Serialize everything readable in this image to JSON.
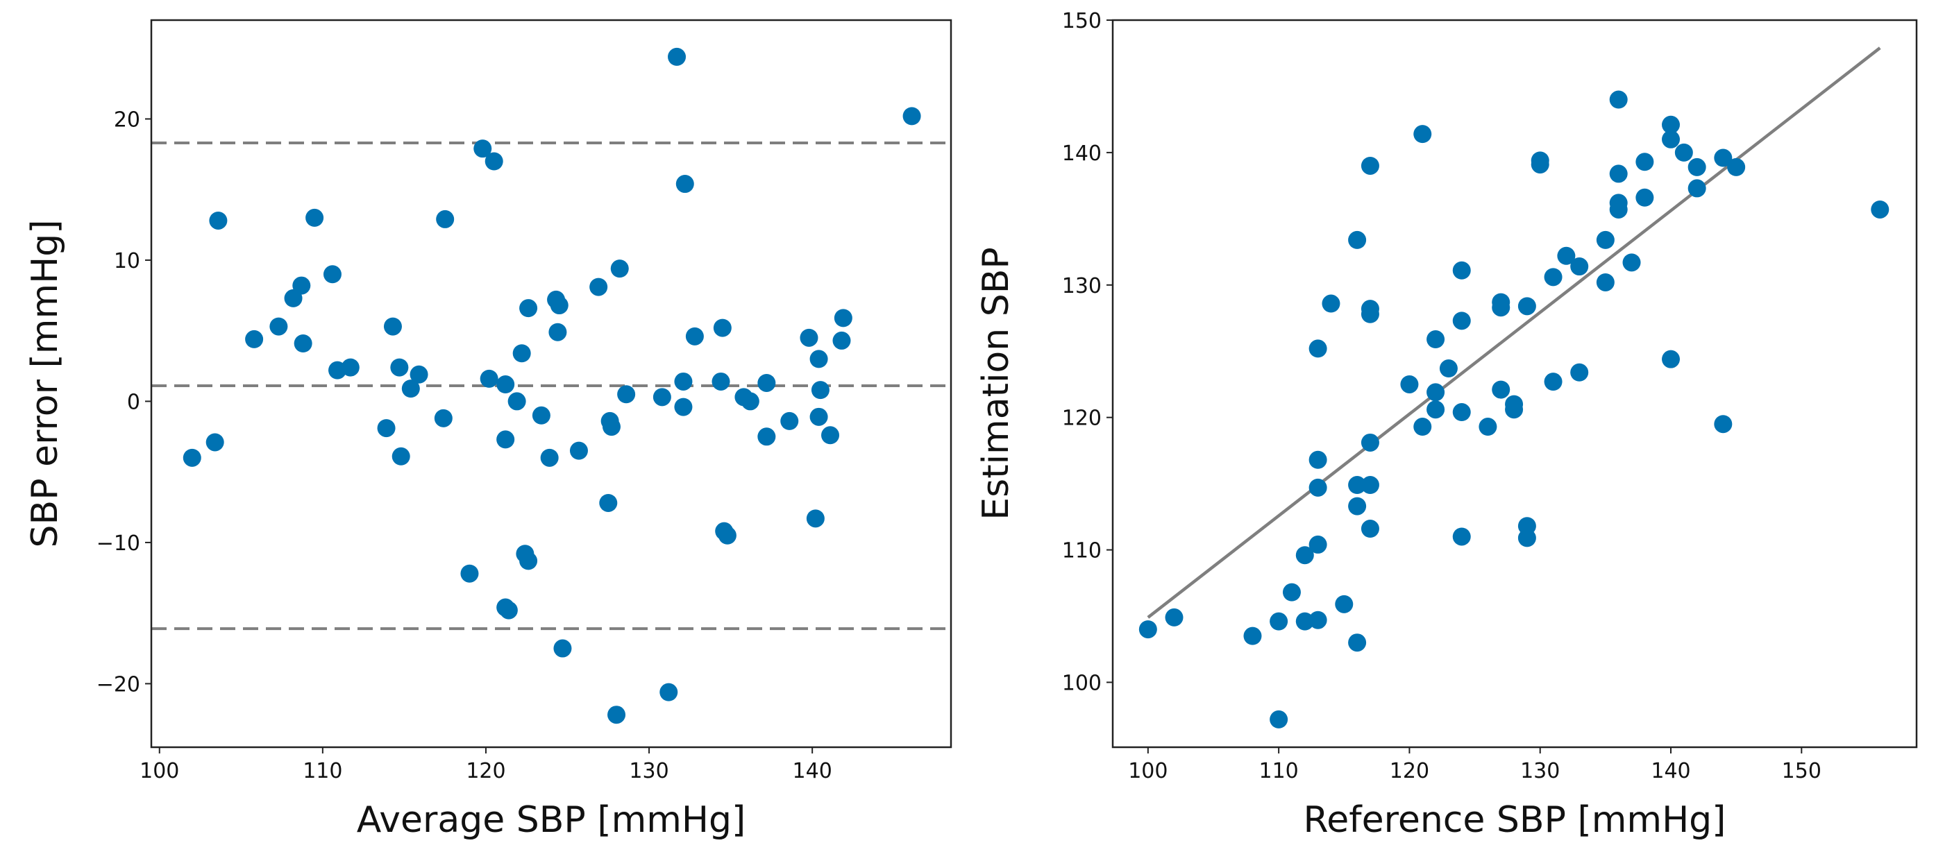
{
  "chart_data": [
    {
      "type": "scatter",
      "name": "bland-altman",
      "xlabel": "Average SBP [mmHg]",
      "ylabel": "SBP error [mmHg]",
      "xlim": [
        99.5,
        148.5
      ],
      "ylim": [
        -24.5,
        27
      ],
      "xticks": [
        100,
        110,
        120,
        130,
        140
      ],
      "yticks": [
        -20,
        -10,
        0,
        10,
        20
      ],
      "point_color": "#0072b2",
      "reference_lines": [
        {
          "label": "upper-limit",
          "y": 18.3,
          "style": "dashed",
          "color": "#7f7f7f"
        },
        {
          "label": "mean-bias",
          "y": 1.1,
          "style": "dashed",
          "color": "#7f7f7f"
        },
        {
          "label": "lower-limit",
          "y": -16.1,
          "style": "dashed",
          "color": "#7f7f7f"
        }
      ],
      "points": [
        [
          102.0,
          -4.0
        ],
        [
          103.4,
          -2.9
        ],
        [
          103.6,
          12.8
        ],
        [
          105.8,
          4.4
        ],
        [
          107.3,
          5.3
        ],
        [
          108.2,
          7.3
        ],
        [
          108.7,
          8.2
        ],
        [
          108.8,
          4.1
        ],
        [
          109.5,
          13.0
        ],
        [
          110.6,
          9.0
        ],
        [
          110.9,
          2.2
        ],
        [
          111.7,
          2.4
        ],
        [
          113.9,
          -1.9
        ],
        [
          114.3,
          5.3
        ],
        [
          114.7,
          2.4
        ],
        [
          114.8,
          -3.9
        ],
        [
          115.4,
          0.9
        ],
        [
          115.9,
          1.9
        ],
        [
          117.4,
          -1.2
        ],
        [
          117.5,
          12.9
        ],
        [
          119.0,
          -12.2
        ],
        [
          119.8,
          17.9
        ],
        [
          120.2,
          1.6
        ],
        [
          120.5,
          17.0
        ],
        [
          121.2,
          -2.7
        ],
        [
          121.2,
          1.2
        ],
        [
          121.2,
          -14.6
        ],
        [
          121.4,
          -14.8
        ],
        [
          121.9,
          0.0
        ],
        [
          122.2,
          3.4
        ],
        [
          122.4,
          -10.8
        ],
        [
          122.6,
          -11.3
        ],
        [
          122.6,
          6.6
        ],
        [
          123.4,
          -1.0
        ],
        [
          123.9,
          -4.0
        ],
        [
          124.3,
          7.2
        ],
        [
          124.4,
          4.9
        ],
        [
          124.5,
          6.8
        ],
        [
          124.7,
          -17.5
        ],
        [
          125.7,
          -3.5
        ],
        [
          126.9,
          8.1
        ],
        [
          127.5,
          -7.2
        ],
        [
          127.6,
          -1.4
        ],
        [
          127.7,
          -1.8
        ],
        [
          128.2,
          9.4
        ],
        [
          128.6,
          0.5
        ],
        [
          128.0,
          -22.2
        ],
        [
          130.8,
          0.3
        ],
        [
          131.2,
          -20.6
        ],
        [
          131.7,
          24.4
        ],
        [
          132.1,
          1.4
        ],
        [
          132.1,
          -0.4
        ],
        [
          132.2,
          15.4
        ],
        [
          132.8,
          4.6
        ],
        [
          134.4,
          1.4
        ],
        [
          134.5,
          5.2
        ],
        [
          134.6,
          -9.2
        ],
        [
          134.8,
          -9.5
        ],
        [
          135.8,
          0.3
        ],
        [
          136.2,
          0.0
        ],
        [
          137.2,
          1.3
        ],
        [
          137.2,
          -2.5
        ],
        [
          138.6,
          -1.4
        ],
        [
          139.8,
          4.5
        ],
        [
          140.2,
          -8.3
        ],
        [
          140.4,
          3.0
        ],
        [
          140.4,
          -1.1
        ],
        [
          140.5,
          0.8
        ],
        [
          141.1,
          -2.4
        ],
        [
          141.8,
          4.3
        ],
        [
          141.9,
          5.9
        ],
        [
          146.1,
          20.2
        ]
      ]
    },
    {
      "type": "scatter",
      "name": "correlation",
      "xlabel": "Reference SBP [mmHg]",
      "ylabel": "Estimation SBP",
      "xlim": [
        97.3,
        158.8
      ],
      "ylim": [
        95.1,
        150
      ],
      "xticks": [
        100,
        110,
        120,
        130,
        140,
        150
      ],
      "yticks": [
        100,
        110,
        120,
        130,
        140,
        150
      ],
      "point_color": "#0072b2",
      "fit_line": {
        "x": [
          100,
          156
        ],
        "y": [
          104.9,
          147.9
        ],
        "color": "#7f7f7f"
      },
      "points": [
        [
          100,
          104.0
        ],
        [
          102,
          104.9
        ],
        [
          108,
          103.5
        ],
        [
          110,
          97.2
        ],
        [
          110,
          104.6
        ],
        [
          111,
          106.8
        ],
        [
          112,
          104.6
        ],
        [
          112,
          109.6
        ],
        [
          113,
          104.7
        ],
        [
          113,
          110.4
        ],
        [
          113,
          114.7
        ],
        [
          113,
          116.8
        ],
        [
          113,
          125.2
        ],
        [
          114,
          128.6
        ],
        [
          115,
          105.9
        ],
        [
          116,
          103.0
        ],
        [
          116,
          113.3
        ],
        [
          116,
          114.9
        ],
        [
          116,
          133.4
        ],
        [
          117,
          111.6
        ],
        [
          117,
          114.9
        ],
        [
          117,
          118.1
        ],
        [
          117,
          127.8
        ],
        [
          117,
          128.2
        ],
        [
          117,
          139.0
        ],
        [
          120,
          122.5
        ],
        [
          121,
          119.3
        ],
        [
          121,
          141.4
        ],
        [
          122,
          120.6
        ],
        [
          122,
          121.9
        ],
        [
          122,
          125.9
        ],
        [
          123,
          123.7
        ],
        [
          124,
          111.0
        ],
        [
          124,
          120.4
        ],
        [
          124,
          127.3
        ],
        [
          124,
          131.1
        ],
        [
          126,
          119.3
        ],
        [
          127,
          122.1
        ],
        [
          127,
          128.3
        ],
        [
          127,
          128.7
        ],
        [
          128,
          120.6
        ],
        [
          128,
          121.0
        ],
        [
          129,
          110.9
        ],
        [
          129,
          111.8
        ],
        [
          129,
          128.4
        ],
        [
          130,
          139.1
        ],
        [
          130,
          139.4
        ],
        [
          131,
          122.7
        ],
        [
          131,
          130.6
        ],
        [
          132,
          132.2
        ],
        [
          133,
          123.4
        ],
        [
          133,
          131.4
        ],
        [
          135,
          130.2
        ],
        [
          135,
          133.4
        ],
        [
          136,
          135.7
        ],
        [
          136,
          136.2
        ],
        [
          136,
          138.4
        ],
        [
          136,
          144.0
        ],
        [
          137,
          131.7
        ],
        [
          138,
          136.6
        ],
        [
          138,
          139.3
        ],
        [
          140,
          124.4
        ],
        [
          140,
          141.0
        ],
        [
          140,
          142.1
        ],
        [
          141,
          140.0
        ],
        [
          142,
          137.3
        ],
        [
          142,
          138.9
        ],
        [
          144,
          119.5
        ],
        [
          144,
          139.6
        ],
        [
          145,
          138.9
        ],
        [
          156,
          135.7
        ]
      ]
    }
  ]
}
